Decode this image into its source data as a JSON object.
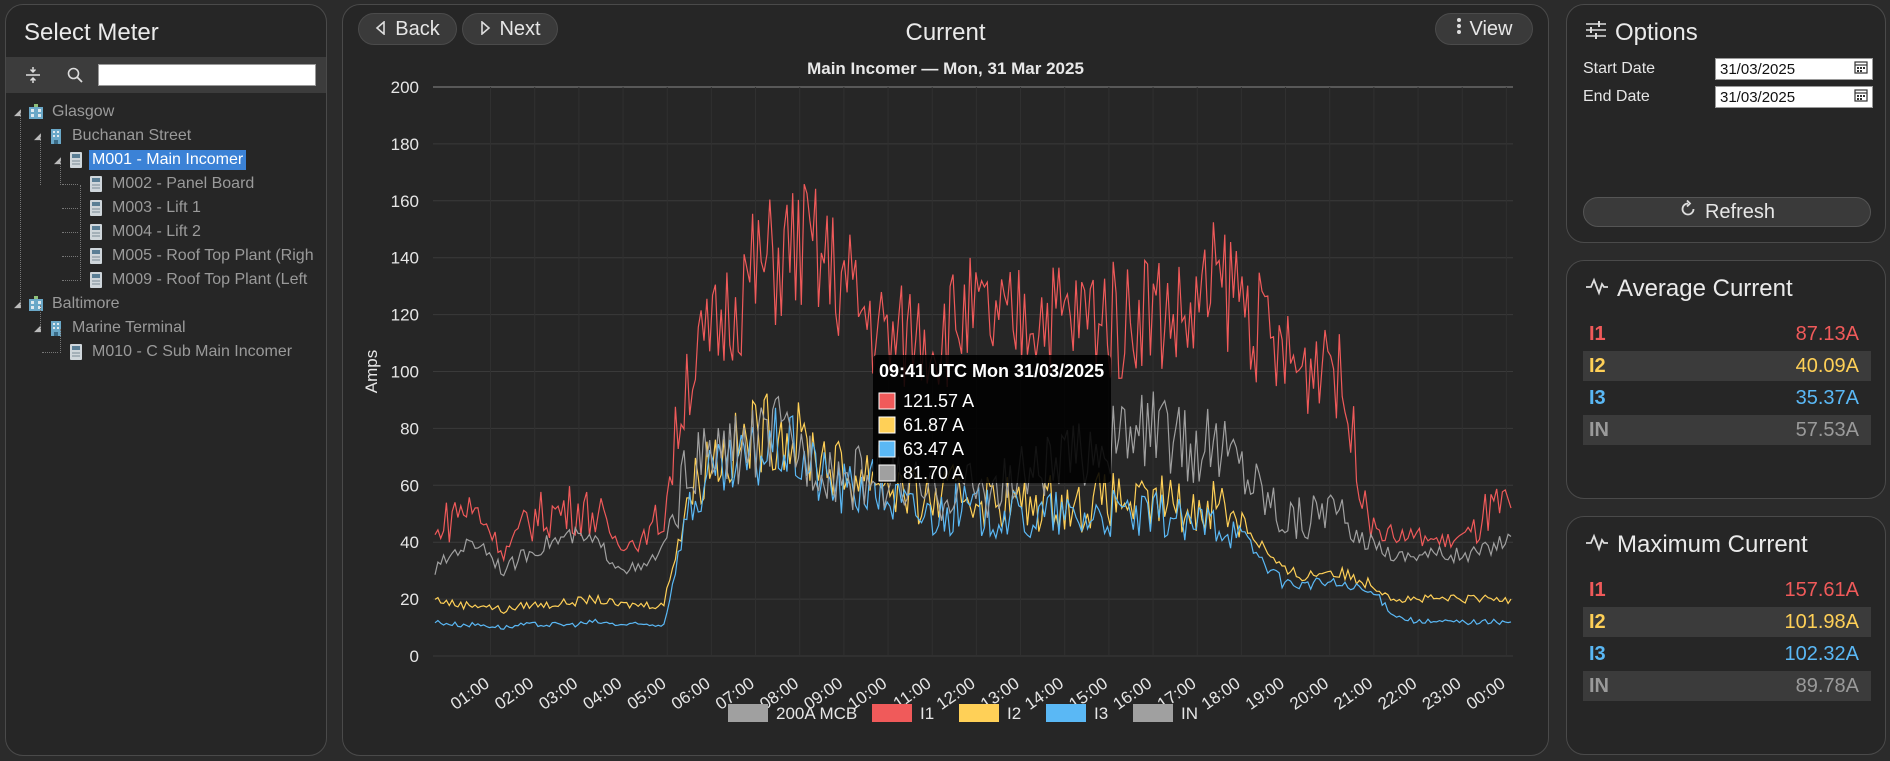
{
  "left": {
    "title": "Select Meter",
    "search": {
      "value": "",
      "placeholder": ""
    },
    "tree": [
      {
        "label": "Glasgow",
        "type": "site"
      },
      {
        "label": "Buchanan Street",
        "type": "building"
      },
      {
        "label": "M001 - Main Incomer",
        "type": "meter",
        "selected": true
      },
      {
        "label": "M002 - Panel Board",
        "type": "meter"
      },
      {
        "label": "M003 - Lift 1",
        "type": "meter"
      },
      {
        "label": "M004 - Lift 2",
        "type": "meter"
      },
      {
        "label": "M005 - Roof Top Plant (Righ",
        "type": "meter"
      },
      {
        "label": "M009 - Roof Top Plant (Left",
        "type": "meter"
      },
      {
        "label": "Baltimore",
        "type": "site"
      },
      {
        "label": "Marine Terminal",
        "type": "building"
      },
      {
        "label": "M010 - C Sub Main Incomer",
        "type": "meter"
      }
    ]
  },
  "center": {
    "back_label": "Back",
    "next_label": "Next",
    "title": "Current",
    "view_label": "View",
    "subtitle": "Main Incomer — Mon, 31 Mar 2025"
  },
  "options": {
    "title": "Options",
    "start_label": "Start Date",
    "start_value": "31/03/2025",
    "end_label": "End Date",
    "end_value": "31/03/2025",
    "refresh_label": "Refresh"
  },
  "average": {
    "title": "Average Current",
    "rows": [
      {
        "name": "I1",
        "value": "87.13",
        "unit": "A",
        "color": "#f05a5a"
      },
      {
        "name": "I2",
        "value": "40.09",
        "unit": "A",
        "color": "#ffd057"
      },
      {
        "name": "I3",
        "value": "35.37",
        "unit": "A",
        "color": "#5ab8f5"
      },
      {
        "name": "IN",
        "value": "57.53",
        "unit": "A",
        "color": "#9a9a9a"
      }
    ]
  },
  "maximum": {
    "title": "Maximum Current",
    "rows": [
      {
        "name": "I1",
        "value": "157.61",
        "unit": "A",
        "color": "#f05a5a"
      },
      {
        "name": "I2",
        "value": "101.98",
        "unit": "A",
        "color": "#ffd057"
      },
      {
        "name": "I3",
        "value": "102.32",
        "unit": "A",
        "color": "#5ab8f5"
      },
      {
        "name": "IN",
        "value": "89.78",
        "unit": "A",
        "color": "#9a9a9a"
      }
    ]
  },
  "chart_data": {
    "type": "line",
    "ylabel": "Amps",
    "ylim": [
      0,
      200
    ],
    "yticks": [
      0,
      20,
      40,
      60,
      80,
      100,
      120,
      140,
      160,
      180,
      200
    ],
    "xticks": [
      "01:00",
      "02:00",
      "03:00",
      "04:00",
      "05:00",
      "06:00",
      "07:00",
      "08:00",
      "09:00",
      "10:00",
      "11:00",
      "12:00",
      "13:00",
      "14:00",
      "15:00",
      "16:00",
      "17:00",
      "18:00",
      "19:00",
      "20:00",
      "21:00",
      "22:00",
      "23:00",
      "00:00"
    ],
    "grid": true,
    "legend_position": "bottom",
    "legend": [
      {
        "name": "200A MCB",
        "color": "#a0a0a0"
      },
      {
        "name": "I1",
        "color": "#f05a5a"
      },
      {
        "name": "I2",
        "color": "#ffd057"
      },
      {
        "name": "I3",
        "color": "#5ab8f5"
      },
      {
        "name": "IN",
        "color": "#a0a0a0"
      }
    ],
    "x": [
      "00:30",
      "01:00",
      "01:30",
      "02:00",
      "02:30",
      "03:00",
      "03:30",
      "04:00",
      "04:30",
      "05:00",
      "05:30",
      "06:00",
      "06:30",
      "07:00",
      "07:30",
      "08:00",
      "08:30",
      "09:00",
      "09:30",
      "10:00",
      "10:30",
      "11:00",
      "11:30",
      "12:00",
      "12:30",
      "13:00",
      "13:30",
      "14:00",
      "14:30",
      "15:00",
      "15:30",
      "16:00",
      "16:30",
      "17:00",
      "17:30",
      "18:00",
      "18:30",
      "19:00",
      "19:30",
      "20:00",
      "20:30",
      "21:00",
      "21:30",
      "22:00",
      "22:30",
      "23:00",
      "23:30",
      "00:00"
    ],
    "series": [
      {
        "name": "200A MCB",
        "color": "#a0a0a0",
        "values": [
          200,
          200,
          200,
          200,
          200,
          200,
          200,
          200,
          200,
          200,
          200,
          200,
          200,
          200,
          200,
          200,
          200,
          200,
          200,
          200,
          200,
          200,
          200,
          200,
          200,
          200,
          200,
          200,
          200,
          200,
          200,
          200,
          200,
          200,
          200,
          200,
          200,
          200,
          200,
          200,
          200,
          200,
          200,
          200,
          200,
          200,
          200,
          200
        ]
      },
      {
        "name": "I1",
        "color": "#f05a5a",
        "values": [
          42,
          52,
          50,
          36,
          48,
          50,
          52,
          50,
          40,
          40,
          50,
          100,
          110,
          125,
          135,
          140,
          145,
          138,
          130,
          118,
          110,
          115,
          112,
          120,
          118,
          115,
          122,
          120,
          118,
          122,
          116,
          125,
          120,
          118,
          130,
          130,
          115,
          105,
          100,
          112,
          80,
          45,
          42,
          42,
          40,
          42,
          50,
          52
        ]
      },
      {
        "name": "I2",
        "color": "#ffd057",
        "values": [
          20,
          18,
          18,
          16,
          18,
          18,
          19,
          20,
          18,
          18,
          18,
          55,
          70,
          72,
          78,
          80,
          75,
          70,
          62,
          65,
          60,
          55,
          55,
          58,
          55,
          55,
          52,
          55,
          52,
          55,
          55,
          52,
          55,
          50,
          55,
          50,
          40,
          30,
          28,
          30,
          28,
          25,
          20,
          20,
          20,
          20,
          20,
          20
        ]
      },
      {
        "name": "I3",
        "color": "#5ab8f5",
        "values": [
          12,
          11,
          11,
          10,
          11,
          11,
          11,
          12,
          11,
          11,
          11,
          50,
          62,
          65,
          70,
          75,
          70,
          62,
          58,
          60,
          55,
          50,
          50,
          52,
          50,
          50,
          48,
          50,
          48,
          50,
          50,
          48,
          50,
          45,
          48,
          45,
          35,
          26,
          25,
          26,
          24,
          22,
          14,
          12,
          12,
          12,
          12,
          12
        ]
      },
      {
        "name": "IN",
        "color": "#a0a0a0",
        "values": [
          30,
          38,
          40,
          30,
          36,
          40,
          42,
          40,
          32,
          30,
          38,
          65,
          70,
          72,
          75,
          78,
          72,
          68,
          62,
          64,
          62,
          58,
          56,
          60,
          58,
          60,
          65,
          66,
          70,
          75,
          76,
          80,
          78,
          72,
          75,
          70,
          60,
          50,
          48,
          55,
          42,
          40,
          35,
          36,
          36,
          35,
          38,
          42
        ]
      }
    ],
    "tooltip": {
      "title": "09:41 UTC Mon 31/03/2025",
      "rows": [
        {
          "label": "121.57 A",
          "color": "#f05a5a"
        },
        {
          "label": "61.87 A",
          "color": "#ffd057"
        },
        {
          "label": "63.47 A",
          "color": "#5ab8f5"
        },
        {
          "label": "81.70 A",
          "color": "#a0a0a0"
        }
      ]
    }
  }
}
